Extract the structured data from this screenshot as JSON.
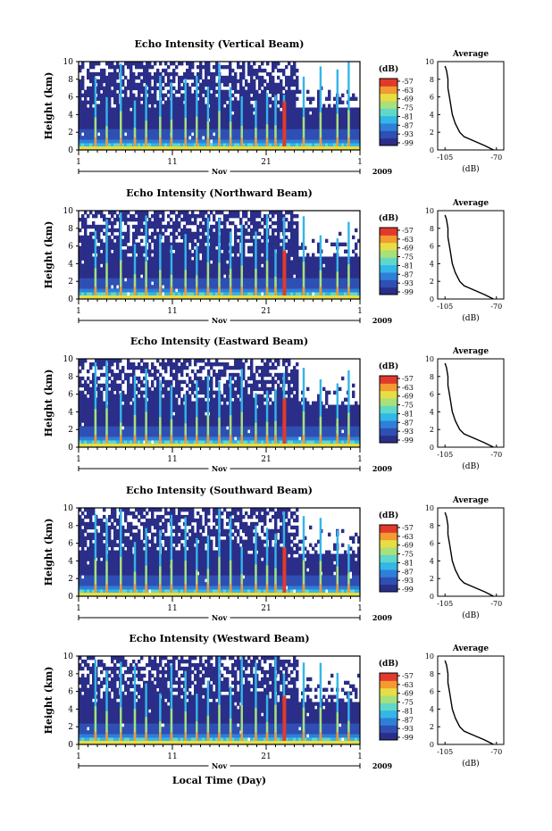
{
  "figure": {
    "xlabel": "Local Time (Day)",
    "color_scale": [
      "#2a2e88",
      "#2f4fb3",
      "#2f7fd8",
      "#33b6e8",
      "#5fd8c9",
      "#a8e07a",
      "#e8dd45",
      "#f39a30",
      "#e2392b"
    ]
  },
  "chart_data": [
    {
      "type": "heatmap",
      "title": "Echo Intensity (Vertical Beam)",
      "ylabel": "Height (km)",
      "ylim": [
        0,
        10
      ],
      "yticks": [
        "0",
        "2",
        "4",
        "6",
        "8",
        "10"
      ],
      "xticks": [
        "1",
        "11",
        "21",
        "1"
      ],
      "month_label": "Nov",
      "year_label": "2009",
      "colorbar": {
        "unit": "(dB)",
        "ticks": [
          "-57",
          "-63",
          "-69",
          "-75",
          "-81",
          "-87",
          "-93",
          "-99"
        ]
      },
      "average_profile": {
        "title": "Average",
        "xlabel": "(dB)",
        "xticks": [
          "-105",
          "-70"
        ],
        "yticks": [
          "0",
          "2",
          "4",
          "6",
          "8",
          "10"
        ],
        "height_km": [
          0,
          0.5,
          1,
          1.5,
          2,
          3,
          4,
          5,
          6,
          7,
          8,
          9,
          9.5
        ],
        "db": [
          -72,
          -78,
          -85,
          -92,
          -95,
          -98,
          -100,
          -101,
          -102,
          -103,
          -103,
          -104,
          -105
        ]
      }
    },
    {
      "type": "heatmap",
      "title": "Echo Intensity (Northward Beam)",
      "ylabel": "Height (km)",
      "ylim": [
        0,
        10
      ],
      "yticks": [
        "0",
        "2",
        "4",
        "6",
        "8",
        "10"
      ],
      "xticks": [
        "1",
        "11",
        "21",
        "1"
      ],
      "month_label": "Nov",
      "year_label": "2009",
      "colorbar": {
        "unit": "(dB)",
        "ticks": [
          "-57",
          "-63",
          "-69",
          "-75",
          "-81",
          "-87",
          "-93",
          "-99"
        ]
      },
      "average_profile": {
        "title": "Average",
        "xlabel": "(dB)",
        "xticks": [
          "-105",
          "-70"
        ],
        "yticks": [
          "0",
          "2",
          "4",
          "6",
          "8",
          "10"
        ],
        "height_km": [
          0,
          0.5,
          1,
          1.5,
          2,
          3,
          4,
          5,
          6,
          7,
          8,
          9,
          9.5
        ],
        "db": [
          -72,
          -78,
          -85,
          -92,
          -95,
          -98,
          -100,
          -101,
          -102,
          -103,
          -103,
          -104,
          -105
        ]
      }
    },
    {
      "type": "heatmap",
      "title": "Echo Intensity (Eastward Beam)",
      "ylabel": "Height (km)",
      "ylim": [
        0,
        10
      ],
      "yticks": [
        "0",
        "2",
        "4",
        "6",
        "8",
        "10"
      ],
      "xticks": [
        "1",
        "11",
        "21",
        "1"
      ],
      "month_label": "Nov",
      "year_label": "2009",
      "colorbar": {
        "unit": "(dB)",
        "ticks": [
          "-57",
          "-63",
          "-69",
          "-75",
          "-81",
          "-87",
          "-93",
          "-99"
        ]
      },
      "average_profile": {
        "title": "Average",
        "xlabel": "(dB)",
        "xticks": [
          "-105",
          "-70"
        ],
        "yticks": [
          "0",
          "2",
          "4",
          "6",
          "8",
          "10"
        ],
        "height_km": [
          0,
          0.5,
          1,
          1.5,
          2,
          3,
          4,
          5,
          6,
          7,
          8,
          9,
          9.5
        ],
        "db": [
          -72,
          -78,
          -85,
          -92,
          -95,
          -98,
          -100,
          -101,
          -102,
          -103,
          -103,
          -104,
          -105
        ]
      }
    },
    {
      "type": "heatmap",
      "title": "Echo Intensity (Southward Beam)",
      "ylabel": "Height (km)",
      "ylim": [
        0,
        10
      ],
      "yticks": [
        "0",
        "2",
        "4",
        "6",
        "8",
        "10"
      ],
      "xticks": [
        "1",
        "11",
        "21",
        "1"
      ],
      "month_label": "Nov",
      "year_label": "2009",
      "colorbar": {
        "unit": "(dB)",
        "ticks": [
          "-57",
          "-63",
          "-69",
          "-75",
          "-81",
          "-87",
          "-93",
          "-99"
        ]
      },
      "average_profile": {
        "title": "Average",
        "xlabel": "(dB)",
        "xticks": [
          "-105",
          "-70"
        ],
        "yticks": [
          "0",
          "2",
          "4",
          "6",
          "8",
          "10"
        ],
        "height_km": [
          0,
          0.5,
          1,
          1.5,
          2,
          3,
          4,
          5,
          6,
          7,
          8,
          9,
          9.5
        ],
        "db": [
          -72,
          -78,
          -85,
          -92,
          -95,
          -98,
          -100,
          -101,
          -102,
          -103,
          -103,
          -104,
          -105
        ]
      }
    },
    {
      "type": "heatmap",
      "title": "Echo Intensity (Westward Beam)",
      "ylabel": "Height (km)",
      "ylim": [
        0,
        10
      ],
      "yticks": [
        "0",
        "2",
        "4",
        "6",
        "8",
        "10"
      ],
      "xticks": [
        "1",
        "11",
        "21",
        "1"
      ],
      "month_label": "Nov",
      "year_label": "2009",
      "colorbar": {
        "unit": "(dB)",
        "ticks": [
          "-57",
          "-63",
          "-69",
          "-75",
          "-81",
          "-87",
          "-93",
          "-99"
        ]
      },
      "average_profile": {
        "title": "Average",
        "xlabel": "(dB)",
        "xticks": [
          "-105",
          "-70"
        ],
        "yticks": [
          "0",
          "2",
          "4",
          "6",
          "8",
          "10"
        ],
        "height_km": [
          0,
          0.5,
          1,
          1.5,
          2,
          3,
          4,
          5,
          6,
          7,
          8,
          9,
          9.5
        ],
        "db": [
          -72,
          -78,
          -85,
          -92,
          -95,
          -98,
          -100,
          -101,
          -102,
          -103,
          -103,
          -104,
          -105
        ]
      }
    }
  ]
}
